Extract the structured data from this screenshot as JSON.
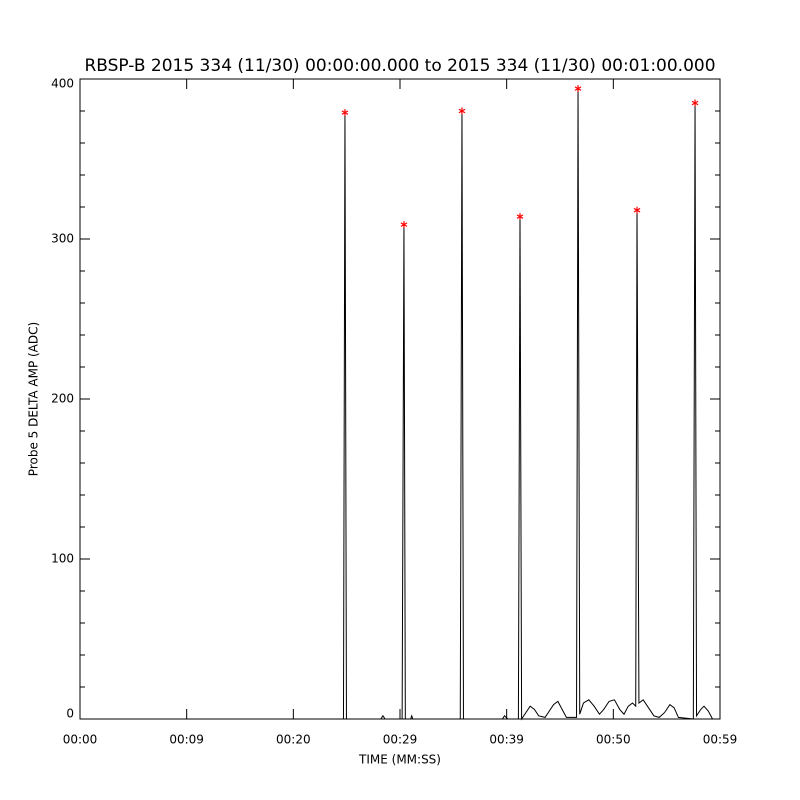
{
  "chart_data": {
    "type": "line",
    "title": "RBSP-B 2015 334 (11/30) 00:00:00.000 to 2015 334 (11/30) 00:01:00.000",
    "x_label": "TIME (MM:SS)",
    "y_label": "Probe 5 DELTA AMP (ADC)",
    "xlim": [
      0,
      60
    ],
    "ylim": [
      0,
      400
    ],
    "xticks": [
      {
        "value": 0,
        "label": "00:00"
      },
      {
        "value": 10,
        "label": "00:09"
      },
      {
        "value": 20,
        "label": "00:20"
      },
      {
        "value": 30,
        "label": "00:29"
      },
      {
        "value": 40,
        "label": "00:39"
      },
      {
        "value": 50,
        "label": "00:50"
      },
      {
        "value": 60,
        "label": "00:59"
      }
    ],
    "yticks": [
      0,
      100,
      200,
      300,
      400
    ],
    "yminorticks": [
      20,
      40,
      60,
      80,
      120,
      140,
      160,
      180,
      220,
      240,
      260,
      280,
      320,
      340,
      360,
      380
    ],
    "series": [
      {
        "color": "#000000",
        "marker": "none",
        "x": [
          0,
          24.7,
          24.84,
          24.98,
          28.2,
          28.4,
          28.6,
          30.2,
          30.37,
          30.5,
          31.0,
          31.1,
          31.2,
          35.65,
          35.81,
          35.95,
          39.6,
          39.8,
          40.1,
          41.1,
          41.25,
          41.4,
          41.8,
          42.2,
          42.6,
          43.0,
          43.6,
          44.0,
          44.4,
          44.8,
          45.2,
          45.6,
          46.55,
          46.69,
          46.85,
          47.2,
          47.7,
          48.2,
          48.7,
          49.1,
          49.6,
          50.1,
          50.6,
          51.0,
          51.4,
          51.8,
          52.1,
          52.22,
          52.4,
          52.8,
          53.3,
          53.8,
          54.3,
          54.8,
          55.3,
          55.7,
          56.1,
          57.5,
          57.66,
          57.8,
          58.2,
          58.5,
          58.9,
          59.3
        ],
        "values": [
          0,
          0,
          379,
          0,
          0,
          2,
          0,
          0,
          309,
          0,
          0,
          2,
          0,
          0,
          380,
          0,
          0,
          2,
          0,
          0,
          314,
          0,
          4,
          8,
          6,
          2,
          1,
          5,
          9,
          11,
          6,
          1,
          1,
          394,
          3,
          10,
          12,
          8,
          3,
          6,
          11,
          12,
          6,
          3,
          8,
          10,
          8,
          318,
          10,
          12,
          7,
          2,
          1,
          4,
          9,
          7,
          1,
          0,
          385,
          2,
          6,
          8,
          5,
          0
        ]
      },
      {
        "color": "#ff0000",
        "marker": "asterisk",
        "x": [
          24.84,
          30.37,
          35.81,
          41.25,
          46.69,
          52.22,
          57.66
        ],
        "values": [
          379,
          309,
          380,
          314,
          394,
          318,
          385
        ]
      }
    ]
  }
}
